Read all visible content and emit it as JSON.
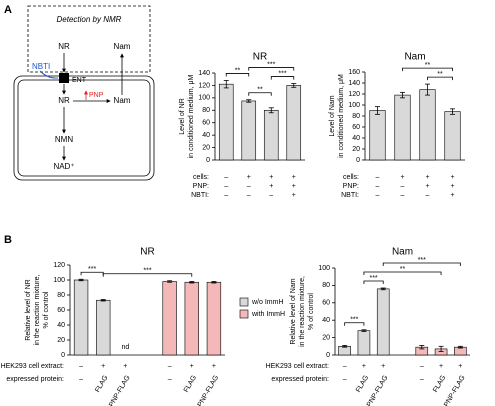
{
  "panel_labels": [
    "A",
    "B"
  ],
  "diagram": {
    "title": "Detection by NMR",
    "outer_nr": "NR",
    "outer_nam": "Nam",
    "inhibitor": "NBTI",
    "transporter": "ENT",
    "inner_nr": "NR",
    "enzyme": "PNP",
    "inner_nam": "Nam",
    "nmn": "NMN",
    "nad": "NAD⁺"
  },
  "chart_data": [
    {
      "type": "bar",
      "title": "NR",
      "ylabel": [
        "Level of NR",
        "in conditioned medium, μM"
      ],
      "ylim": [
        0,
        140
      ],
      "yticks": [
        0,
        20,
        40,
        60,
        80,
        100,
        120,
        140
      ],
      "series": [
        {
          "color": "#d9d9d9",
          "values": [
            122,
            95,
            80,
            120
          ],
          "errors": [
            6,
            2,
            4,
            3
          ]
        }
      ],
      "conditions": [
        {
          "label": "cells:",
          "values": [
            "–",
            "+",
            "+",
            "+"
          ]
        },
        {
          "label": "PNP:",
          "values": [
            "–",
            "–",
            "+",
            "+"
          ]
        },
        {
          "label": "NBTI:",
          "values": [
            "–",
            "–",
            "–",
            "+"
          ]
        }
      ],
      "annotations": [
        {
          "from": 0,
          "to": 1,
          "label": "**"
        },
        {
          "from": 1,
          "to": 2,
          "label": "**"
        },
        {
          "from": 2,
          "to": 3,
          "label": "***"
        },
        {
          "from": 1,
          "to": 3,
          "label": "***"
        }
      ]
    },
    {
      "type": "bar",
      "title": "Nam",
      "ylabel": [
        "Level of Nam",
        "in conditioned medium, μM"
      ],
      "ylim": [
        0,
        160
      ],
      "yticks": [
        0,
        20,
        40,
        60,
        80,
        100,
        120,
        140,
        160
      ],
      "series": [
        {
          "color": "#d9d9d9",
          "values": [
            90,
            118,
            128,
            88
          ],
          "errors": [
            7,
            5,
            10,
            5
          ]
        }
      ],
      "conditions": [
        {
          "label": "cells:",
          "values": [
            "–",
            "+",
            "+",
            "+"
          ]
        },
        {
          "label": "PNP:",
          "values": [
            "–",
            "–",
            "+",
            "+"
          ]
        },
        {
          "label": "NBTI:",
          "values": [
            "–",
            "–",
            "–",
            "+"
          ]
        }
      ],
      "annotations": [
        {
          "from": 2,
          "to": 3,
          "label": "**"
        },
        {
          "from": 1,
          "to": 3,
          "label": "**"
        }
      ]
    },
    {
      "type": "bar",
      "title": "NR",
      "ylabel": [
        "Relative level of NR",
        "in the reaction mixture,",
        "% of control"
      ],
      "ylim": [
        0,
        120
      ],
      "yticks": [
        0,
        20,
        40,
        60,
        80,
        100,
        120
      ],
      "series": [
        {
          "name": "w/o ImmH",
          "color": "#d9d9d9",
          "values": [
            100,
            73,
            null
          ],
          "errors": [
            1,
            1,
            null
          ],
          "value_labels": [
            null,
            null,
            "nd"
          ]
        },
        {
          "name": "with ImmH",
          "color": "#f4b8b8",
          "values": [
            98,
            97,
            97
          ],
          "errors": [
            1,
            1,
            1
          ]
        }
      ],
      "conditions": [
        {
          "label": "HEK293 cell extract:",
          "values": [
            "–",
            "+",
            "+",
            "–",
            "+",
            "+"
          ]
        },
        {
          "label": "expressed protein:",
          "values": [
            "–",
            "FLAG",
            "PNP-FLAG",
            "–",
            "FLAG",
            "PNP-FLAG"
          ]
        }
      ],
      "annotations": [
        {
          "from": 0,
          "to": 1,
          "label": "***"
        },
        {
          "from": 1,
          "to": 4,
          "label": "***"
        }
      ]
    },
    {
      "type": "bar",
      "title": "Nam",
      "ylabel": [
        "Relative level of Nam",
        "in the reaction mixture,",
        "% of control"
      ],
      "ylim": [
        0,
        100
      ],
      "yticks": [
        0,
        20,
        40,
        60,
        80,
        100
      ],
      "series": [
        {
          "color": "#d9d9d9",
          "values": [
            10,
            28,
            76
          ],
          "errors": [
            1,
            1,
            1
          ]
        },
        {
          "color": "#f4b8b8",
          "values": [
            9,
            7,
            9
          ],
          "errors": [
            2,
            3,
            1
          ]
        }
      ],
      "conditions": [
        {
          "label": "HEK293 cell extract:",
          "values": [
            "–",
            "+",
            "+",
            "–",
            "+",
            "+"
          ]
        },
        {
          "label": "expressed protein:",
          "values": [
            "–",
            "FLAG",
            "PNP-FLAG",
            "–",
            "FLAG",
            "PNP-FLAG"
          ]
        }
      ],
      "annotations": [
        {
          "from": 0,
          "to": 1,
          "label": "***"
        },
        {
          "from": 1,
          "to": 2,
          "label": "***"
        },
        {
          "from": 1,
          "to": 4,
          "label": "**"
        },
        {
          "from": 2,
          "to": 5,
          "label": "***"
        }
      ]
    }
  ]
}
